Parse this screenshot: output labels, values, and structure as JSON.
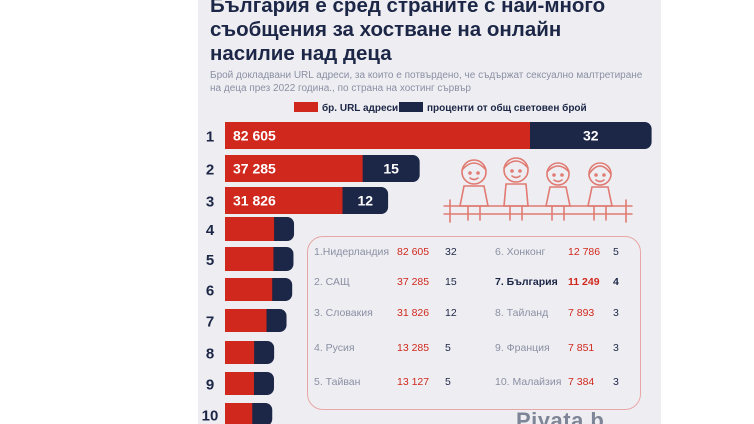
{
  "title_lines": [
    "България е сред страните с най-много",
    "съобщения за хостване на онлайн",
    "насилие над деца"
  ],
  "subtitle_lines": [
    "Брой докладвани URL адреси, за които е потвърдено, че съдържат сексуално малтретиране",
    "на деца през 2022 година., по страна на хостинг сървър"
  ],
  "legend": {
    "urls": "бр. URL адреси",
    "percent": "проценти от общ световен брой"
  },
  "colors": {
    "red": "#d0281d",
    "navy": "#1c2646",
    "grey_text": "#8a8fa3",
    "box_border": "#e8a6a6",
    "background": "#eeeef2"
  },
  "chart_data": {
    "type": "bar",
    "orientation": "horizontal",
    "stacked": true,
    "categories": [
      "1",
      "2",
      "3",
      "4",
      "5",
      "6",
      "7",
      "8",
      "9",
      "10"
    ],
    "series": [
      {
        "name": "бр. URL адреси",
        "values": [
          82605,
          37285,
          31826,
          13285,
          13127,
          12786,
          11249,
          7893,
          7851,
          7384
        ]
      },
      {
        "name": "проценти от общ световен брой",
        "values": [
          32,
          15,
          12,
          5,
          5,
          5,
          4,
          3,
          3,
          3
        ]
      }
    ],
    "value_labels": [
      [
        "82 605",
        "32"
      ],
      [
        "37 285",
        "15"
      ],
      [
        "31 826",
        "12"
      ]
    ]
  },
  "ranking": {
    "left": [
      {
        "name": "1.Нидерландия",
        "value": "82 605",
        "pct": "32"
      },
      {
        "name": "2. САЩ",
        "value": "37 285",
        "pct": "15"
      },
      {
        "name": "3. Словакия",
        "value": "31 826",
        "pct": "12"
      },
      {
        "name": "4. Русия",
        "value": "13 285",
        "pct": "5"
      },
      {
        "name": "5. Тайван",
        "value": "13 127",
        "pct": "5"
      }
    ],
    "right": [
      {
        "name": "6. Хонконг",
        "value": "12 786",
        "pct": "5"
      },
      {
        "name": "7. България",
        "value": "11 249",
        "pct": "4",
        "highlight": true
      },
      {
        "name": "8. Тайланд",
        "value": "7 893",
        "pct": "3"
      },
      {
        "name": "9. Франция",
        "value": "7 851",
        "pct": "3"
      },
      {
        "name": "10. Малайзия",
        "value": "7 384",
        "pct": "3"
      }
    ]
  },
  "watermark": "Piyata.b"
}
